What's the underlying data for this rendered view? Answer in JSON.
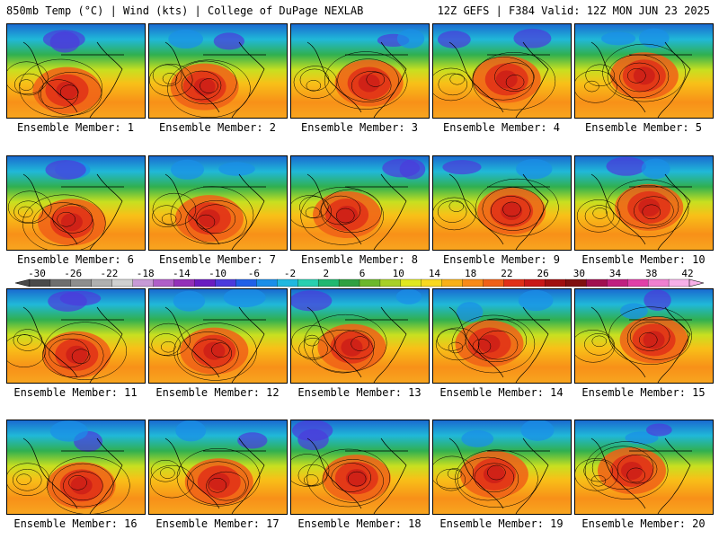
{
  "header": {
    "left": "850mb Temp (°C) | Wind (kts) | College of DuPage NEXLAB",
    "right": "12Z GEFS | F384 Valid: 12Z MON JUN 23 2025"
  },
  "member_label_prefix": "Ensemble Member: ",
  "members": [
    "1",
    "2",
    "3",
    "4",
    "5",
    "6",
    "7",
    "8",
    "9",
    "10",
    "11",
    "12",
    "13",
    "14",
    "15",
    "16",
    "17",
    "18",
    "19",
    "20"
  ],
  "colorbar": {
    "ticks": [
      "-30",
      "-26",
      "-22",
      "-18",
      "-14",
      "-10",
      "-6",
      "-2",
      "2",
      "6",
      "10",
      "14",
      "18",
      "22",
      "26",
      "30",
      "34",
      "38",
      "42"
    ],
    "colors": [
      "#4a4a4a",
      "#6e6e6e",
      "#8e8e8e",
      "#b0b0b0",
      "#d0d0d0",
      "#c89ad6",
      "#b05ec8",
      "#9430b8",
      "#6a1cc0",
      "#4b3adc",
      "#2060e8",
      "#1a8ee8",
      "#20b8e0",
      "#28d0b0",
      "#20b870",
      "#30a040",
      "#6cb82c",
      "#a8d028",
      "#e0e820",
      "#f8d820",
      "#f8b018",
      "#f88a18",
      "#f06018",
      "#e03018",
      "#c81818",
      "#a01010",
      "#801010",
      "#a01050",
      "#c02080",
      "#e040a8",
      "#f080d0",
      "#f8b0e8"
    ]
  }
}
